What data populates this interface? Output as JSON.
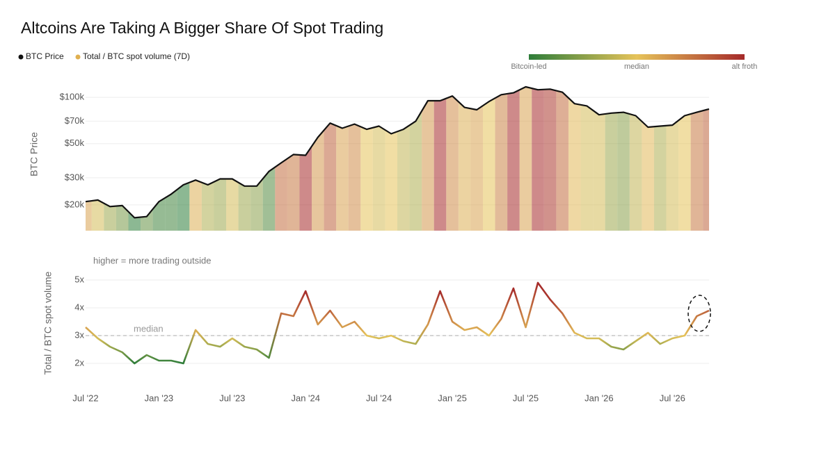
{
  "chart_data": [
    {
      "type": "line",
      "title": "Altcoins Are Taking A Bigger Share Of Spot Trading",
      "ylabel": "BTC Price",
      "log_scale": true,
      "grid": true,
      "x": [
        "2022-07",
        "2022-08",
        "2022-09",
        "2022-10",
        "2022-11",
        "2022-12",
        "2023-01",
        "2023-02",
        "2023-03",
        "2023-04",
        "2023-05",
        "2023-06",
        "2023-07",
        "2023-08",
        "2023-09",
        "2023-10",
        "2023-11",
        "2023-12",
        "2024-01",
        "2024-02",
        "2024-03",
        "2024-04",
        "2024-05",
        "2024-06",
        "2024-07",
        "2024-08",
        "2024-09",
        "2024-10",
        "2024-11",
        "2024-12",
        "2025-01",
        "2025-02",
        "2025-03",
        "2025-04",
        "2025-05",
        "2025-06",
        "2025-07",
        "2025-08",
        "2025-09",
        "2025-10",
        "2025-11",
        "2025-12",
        "2026-01",
        "2026-02",
        "2026-03",
        "2026-04",
        "2026-05",
        "2026-06",
        "2026-07",
        "2026-08",
        "2026-09",
        "2026-10"
      ],
      "series": [
        {
          "name": "BTC Price",
          "color": "#111111",
          "values": [
            21000,
            21500,
            19500,
            19800,
            16500,
            16800,
            21000,
            23500,
            27000,
            29000,
            27000,
            29500,
            29500,
            26500,
            26500,
            33000,
            37500,
            42500,
            42000,
            55000,
            68000,
            63000,
            67000,
            62000,
            65000,
            58000,
            62000,
            70000,
            95000,
            95000,
            102000,
            86000,
            83000,
            94000,
            104000,
            107000,
            117000,
            112000,
            113000,
            108000,
            91000,
            88000,
            77000,
            79000,
            80000,
            76000,
            64000,
            65000,
            66000,
            76000,
            80000,
            84000
          ]
        }
      ],
      "ylim": [
        13600,
        117000
      ],
      "yticks": [
        {
          "value": 20000,
          "label": "$20k"
        },
        {
          "value": 30000,
          "label": "$30k"
        },
        {
          "value": 50000,
          "label": "$50k"
        },
        {
          "value": 70000,
          "label": "$70k"
        },
        {
          "value": 100000,
          "label": "$100k"
        }
      ]
    },
    {
      "type": "line",
      "ylabel": "Total / BTC spot volume",
      "annotation": "higher = more trading outside",
      "grid": true,
      "x": [
        "2022-07",
        "2022-08",
        "2022-09",
        "2022-10",
        "2022-11",
        "2022-12",
        "2023-01",
        "2023-02",
        "2023-03",
        "2023-04",
        "2023-05",
        "2023-06",
        "2023-07",
        "2023-08",
        "2023-09",
        "2023-10",
        "2023-11",
        "2023-12",
        "2024-01",
        "2024-02",
        "2024-03",
        "2024-04",
        "2024-05",
        "2024-06",
        "2024-07",
        "2024-08",
        "2024-09",
        "2024-10",
        "2024-11",
        "2024-12",
        "2025-01",
        "2025-02",
        "2025-03",
        "2025-04",
        "2025-05",
        "2025-06",
        "2025-07",
        "2025-08",
        "2025-09",
        "2025-10",
        "2025-11",
        "2025-12",
        "2026-01",
        "2026-02",
        "2026-03",
        "2026-04",
        "2026-05",
        "2026-06",
        "2026-07",
        "2026-08",
        "2026-09",
        "2026-10"
      ],
      "series": [
        {
          "name": "Total / BTC spot volume (7D)",
          "color": "#e0b050",
          "values": [
            3.3,
            2.9,
            2.6,
            2.4,
            2.0,
            2.3,
            2.1,
            2.1,
            2.0,
            3.2,
            2.7,
            2.6,
            2.9,
            2.6,
            2.5,
            2.2,
            3.8,
            3.7,
            4.6,
            3.4,
            3.9,
            3.3,
            3.5,
            3.0,
            2.9,
            3.0,
            2.8,
            2.7,
            3.4,
            4.6,
            3.5,
            3.2,
            3.3,
            3.0,
            3.6,
            4.7,
            3.3,
            4.9,
            4.3,
            3.8,
            3.1,
            2.9,
            2.9,
            2.6,
            2.5,
            2.8,
            3.1,
            2.7,
            2.9,
            3.0,
            3.7,
            3.9
          ]
        }
      ],
      "colorscale": [
        "#2e7d3a",
        "#e6c35a",
        "#a52a2a"
      ],
      "colorbar_labels": [
        "Bitcoin-led",
        "median",
        "alt froth"
      ],
      "median_line": {
        "value": 3,
        "label": "median"
      },
      "ylim": [
        1.5,
        5.2
      ],
      "yticks": [
        {
          "value": 2,
          "label": "2x"
        },
        {
          "value": 3,
          "label": "3x"
        },
        {
          "value": 4,
          "label": "4x"
        },
        {
          "value": 5,
          "label": "5x"
        }
      ],
      "xticks": [
        {
          "value": "2022-07",
          "label": "Jul '22"
        },
        {
          "value": "2023-01",
          "label": "Jan '23"
        },
        {
          "value": "2023-07",
          "label": "Jul '23"
        },
        {
          "value": "2024-01",
          "label": "Jan '24"
        },
        {
          "value": "2024-07",
          "label": "Jul '24"
        },
        {
          "value": "2025-01",
          "label": "Jan '25"
        },
        {
          "value": "2025-07",
          "label": "Jul '25"
        },
        {
          "value": "2026-01",
          "label": "Jan '26"
        },
        {
          "value": "2026-07",
          "label": "Jul '26"
        }
      ]
    }
  ]
}
